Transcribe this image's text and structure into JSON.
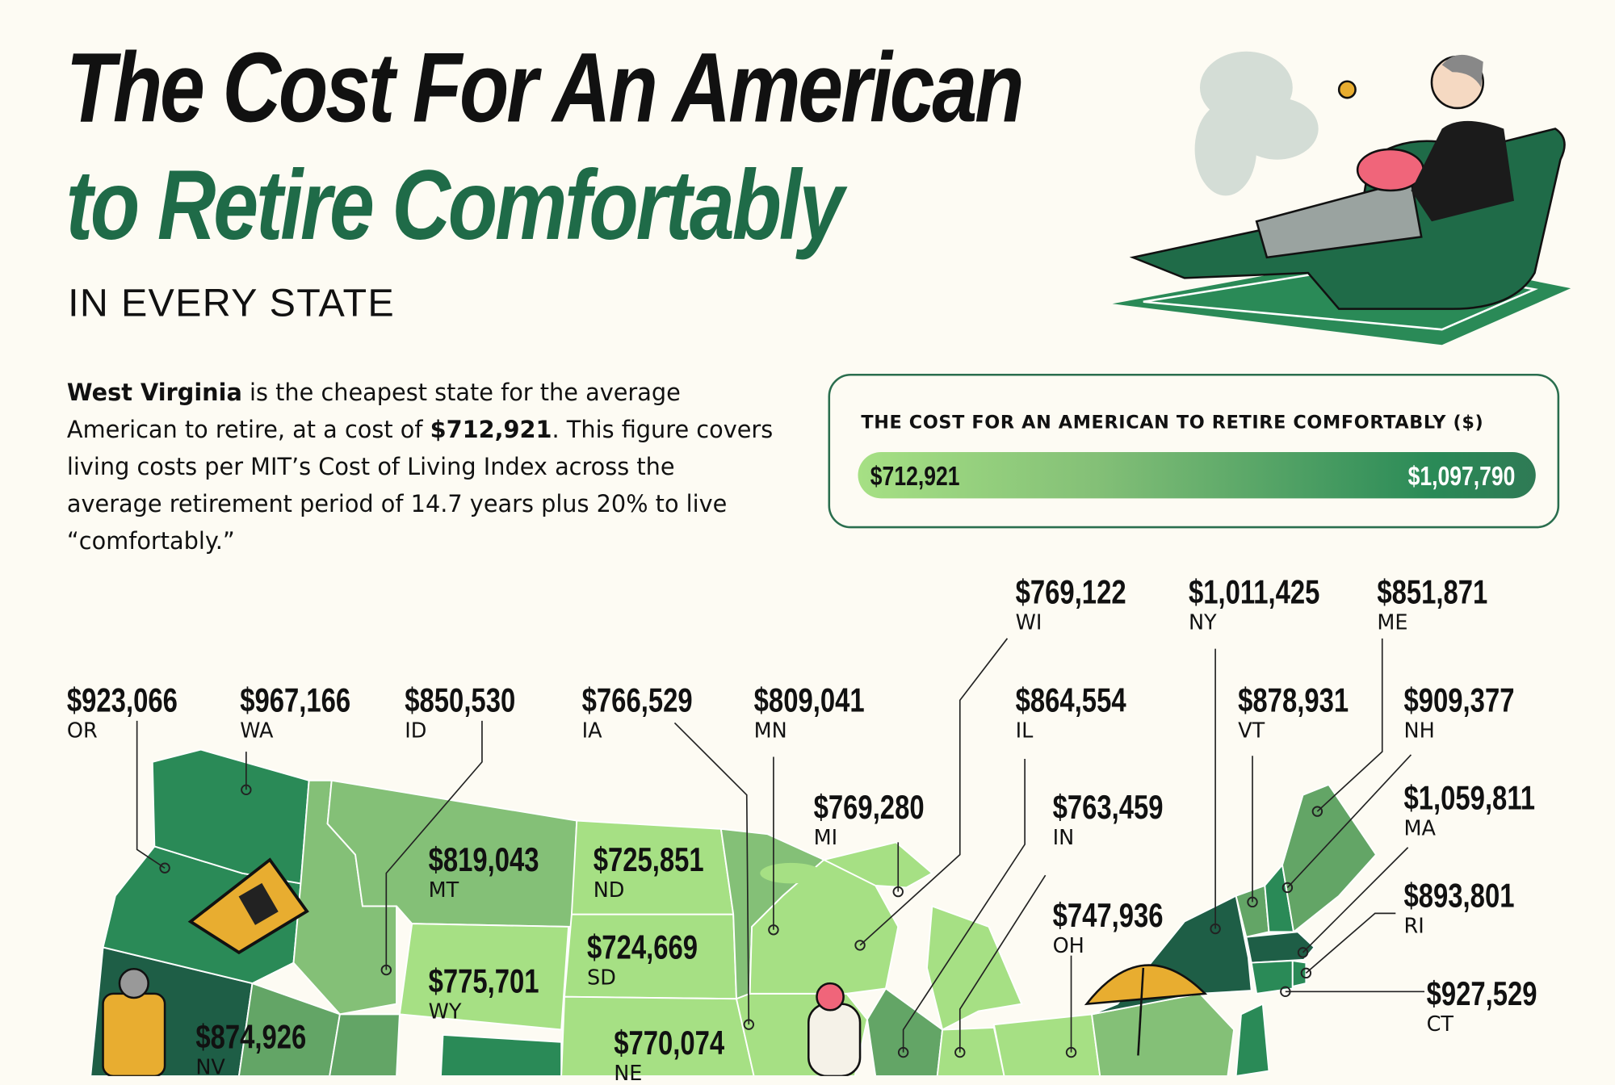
{
  "title": {
    "line1": "The Cost For An American",
    "line2": "to Retire Comfortably",
    "subtitle": "IN EVERY STATE"
  },
  "intro": {
    "state": "West Virginia",
    "text1": " is the cheapest state for the average American to retire, at a cost of ",
    "cost": "$712,921",
    "text2": ". This figure covers living costs per MIT’s Cost of Living Index across the average retirement period of 14.7 years plus 20% to live “comfortably.”"
  },
  "legend": {
    "title": "THE COST FOR AN AMERICAN TO RETIRE COMFORTABLY ($)",
    "min": "$712,921",
    "max": "$1,097,790",
    "colors": [
      "#a6e084",
      "#84c077",
      "#63a566",
      "#2a8a57",
      "#1e5e46"
    ]
  },
  "states": [
    {
      "code": "OR",
      "value": "$923,066"
    },
    {
      "code": "WA",
      "value": "$967,166"
    },
    {
      "code": "ID",
      "value": "$850,530"
    },
    {
      "code": "IA",
      "value": "$766,529"
    },
    {
      "code": "MN",
      "value": "$809,041"
    },
    {
      "code": "WI",
      "value": "$769,122"
    },
    {
      "code": "NY",
      "value": "$1,011,425"
    },
    {
      "code": "ME",
      "value": "$851,871"
    },
    {
      "code": "IL",
      "value": "$864,554"
    },
    {
      "code": "VT",
      "value": "$878,931"
    },
    {
      "code": "NH",
      "value": "$909,377"
    },
    {
      "code": "MI",
      "value": "$769,280"
    },
    {
      "code": "IN",
      "value": "$763,459"
    },
    {
      "code": "MA",
      "value": "$1,059,811"
    },
    {
      "code": "OH",
      "value": "$747,936"
    },
    {
      "code": "RI",
      "value": "$893,801"
    },
    {
      "code": "CT",
      "value": "$927,529"
    },
    {
      "code": "MT",
      "value": "$819,043"
    },
    {
      "code": "ND",
      "value": "$725,851"
    },
    {
      "code": "SD",
      "value": "$724,669"
    },
    {
      "code": "WY",
      "value": "$775,701"
    },
    {
      "code": "NV",
      "value": "$874,926"
    },
    {
      "code": "NE",
      "value": "$770,074"
    }
  ]
}
